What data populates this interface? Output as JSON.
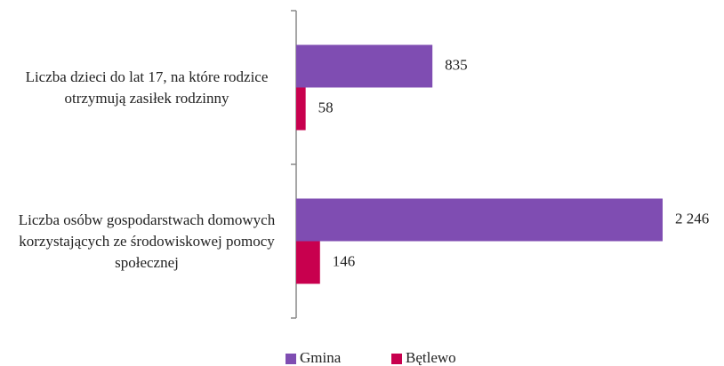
{
  "chart_data": {
    "type": "bar",
    "orientation": "horizontal",
    "categories": [
      "Liczba dzieci do lat 17, na które rodzice otrzymują zasiłek rodzinny",
      "Liczba osóbw gospodarstwach domowych korzystających ze środowiskowej pomocy społecznej"
    ],
    "series": [
      {
        "name": "Gmina",
        "color": "#7f4db2",
        "values": [
          835,
          2246
        ],
        "value_labels": [
          "835",
          "2 246"
        ]
      },
      {
        "name": "Bętlewo",
        "color": "#c8004e",
        "values": [
          58,
          146
        ],
        "value_labels": [
          "58",
          "146"
        ]
      }
    ],
    "legend": "bottom"
  }
}
